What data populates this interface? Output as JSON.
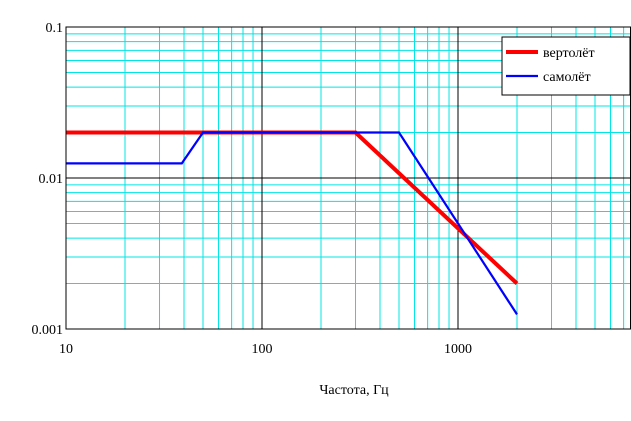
{
  "chart_data": {
    "type": "line",
    "title": "",
    "xlabel": "Частота, Гц",
    "ylabel": "",
    "x_scale": "log",
    "y_scale": "log",
    "xlim": [
      10,
      10000
    ],
    "ylim": [
      0.001,
      0.1
    ],
    "grid": true,
    "legend_position": "top-right",
    "x_ticks": [
      {
        "value": 10,
        "label": "10"
      },
      {
        "value": 100,
        "label": "100"
      },
      {
        "value": 1000,
        "label": "1000"
      }
    ],
    "y_ticks": [
      {
        "value": 0.001,
        "label": "0.001"
      },
      {
        "value": 0.01,
        "label": "0.01"
      },
      {
        "value": 0.1,
        "label": "0.1"
      }
    ],
    "series": [
      {
        "name": "вертолёт",
        "color": "#ff0000",
        "x": [
          10,
          300,
          2000
        ],
        "y": [
          0.02,
          0.02,
          0.002
        ]
      },
      {
        "name": "самолёт",
        "color": "#0000ff",
        "x": [
          10,
          39,
          50,
          500,
          2000
        ],
        "y": [
          0.0125,
          0.0125,
          0.02,
          0.02,
          0.00125
        ]
      }
    ]
  }
}
